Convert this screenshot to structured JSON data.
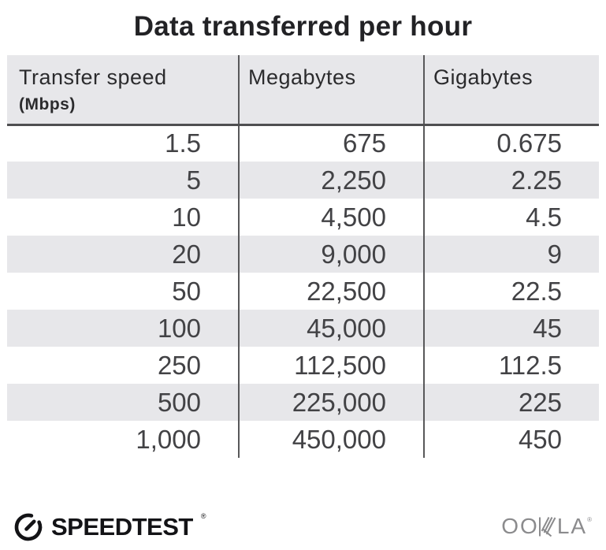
{
  "title": "Data transferred per hour",
  "chart_data": {
    "type": "table",
    "title": "Data transferred per hour",
    "columns": [
      "Transfer speed (Mbps)",
      "Megabytes",
      "Gigabytes"
    ],
    "rows": [
      [
        1.5,
        675,
        0.675
      ],
      [
        5,
        2250,
        2.25
      ],
      [
        10,
        4500,
        4.5
      ],
      [
        20,
        9000,
        9
      ],
      [
        50,
        22500,
        22.5
      ],
      [
        100,
        45000,
        45
      ],
      [
        250,
        112500,
        112.5
      ],
      [
        500,
        225000,
        225
      ],
      [
        1000,
        450000,
        450
      ]
    ]
  },
  "table": {
    "columns": [
      {
        "label": "Transfer speed",
        "sublabel": "(Mbps)"
      },
      {
        "label": "Megabytes",
        "sublabel": ""
      },
      {
        "label": "Gigabytes",
        "sublabel": ""
      }
    ],
    "rows": [
      [
        "1.5",
        "675",
        "0.675"
      ],
      [
        "5",
        "2,250",
        "2.25"
      ],
      [
        "10",
        "4,500",
        "4.5"
      ],
      [
        "20",
        "9,000",
        "9"
      ],
      [
        "50",
        "22,500",
        "22.5"
      ],
      [
        "100",
        "45,000",
        "45"
      ],
      [
        "250",
        "112,500",
        "112.5"
      ],
      [
        "500",
        "225,000",
        "225"
      ],
      [
        "1,000",
        "450,000",
        "450"
      ]
    ]
  },
  "footer": {
    "speedtest_label": "SPEEDTEST",
    "speedtest_trademark": "®",
    "ookla_label": "OOKLA",
    "ookla_trademark": "®"
  },
  "colors": {
    "stripe_gray": "#e7e7ea",
    "header_bg": "#e7e7ea",
    "divider": "#58585a",
    "header_border": "#4f4f51",
    "title_text": "#222225",
    "cell_text": "#424245",
    "speedtest_black": "#131316",
    "ookla_gray": "#8b8b8d"
  }
}
